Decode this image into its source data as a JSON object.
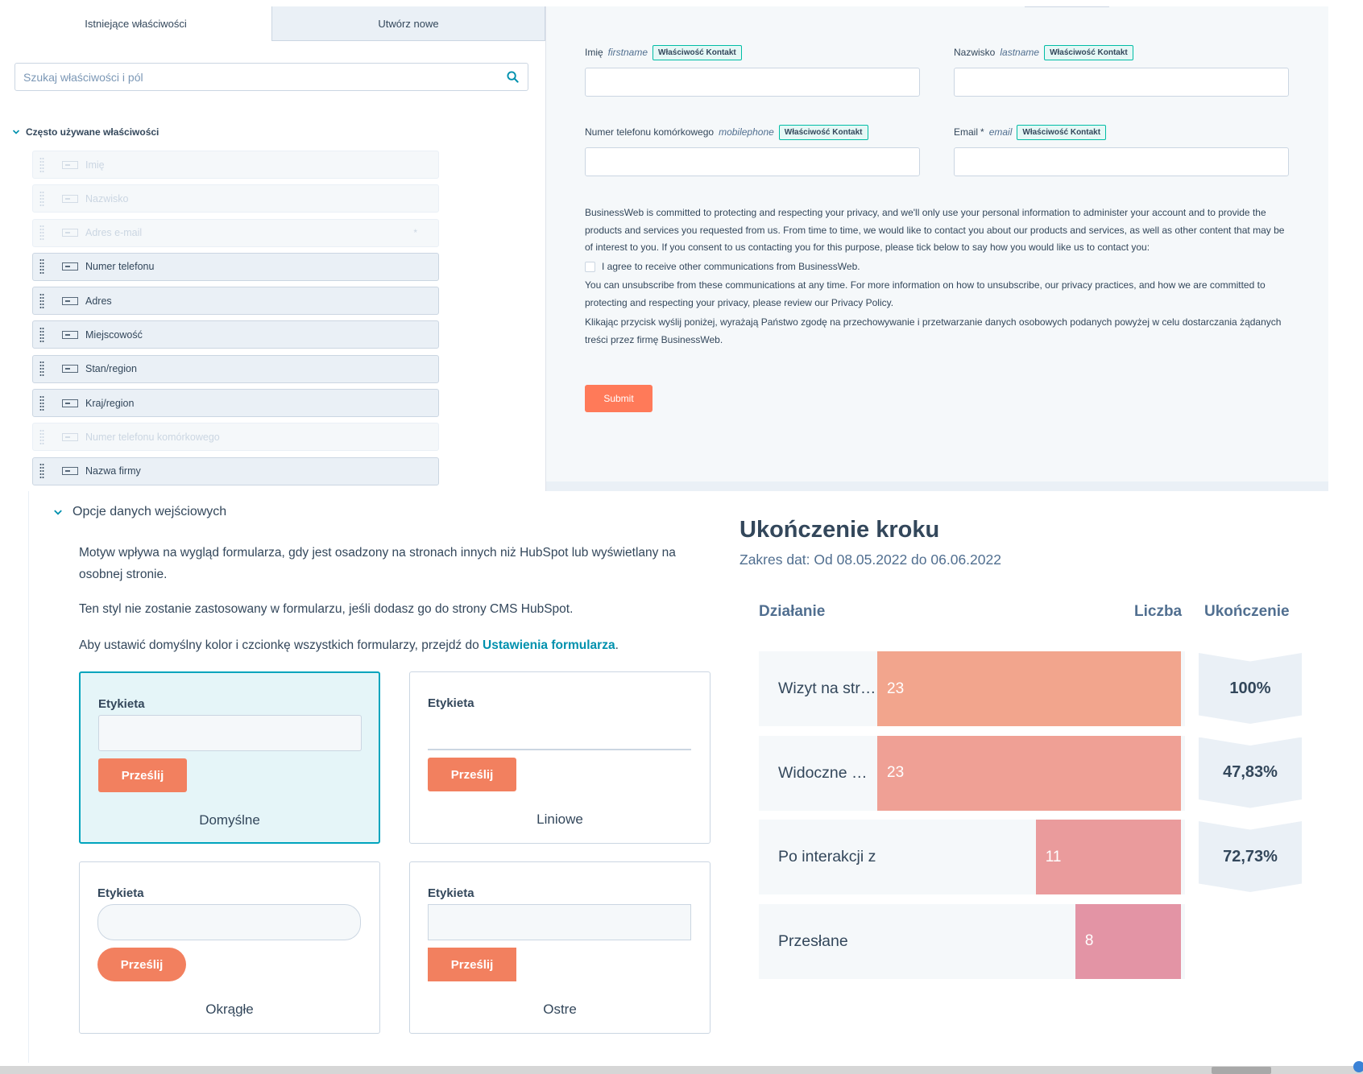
{
  "properties_panel": {
    "tab_existing": "Istniejące właściwości",
    "tab_create": "Utwórz nowe",
    "search_placeholder": "Szukaj właściwości i pól",
    "section_title": "Często używane właściwości",
    "items": [
      {
        "label": "Imię",
        "enabled": false,
        "required": false
      },
      {
        "label": "Nazwisko",
        "enabled": false,
        "required": false
      },
      {
        "label": "Adres e-mail",
        "enabled": false,
        "required": true
      },
      {
        "label": "Numer telefonu",
        "enabled": true,
        "required": false
      },
      {
        "label": "Adres",
        "enabled": true,
        "required": false
      },
      {
        "label": "Miejscowość",
        "enabled": true,
        "required": false
      },
      {
        "label": "Stan/region",
        "enabled": true,
        "required": false
      },
      {
        "label": "Kraj/region",
        "enabled": true,
        "required": false
      },
      {
        "label": "Numer telefonu komórkowego",
        "enabled": false,
        "required": false
      },
      {
        "label": "Nazwa firmy",
        "enabled": true,
        "required": false
      }
    ],
    "required_marker": "*"
  },
  "form_preview": {
    "badge": "Właściwość Kontakt",
    "fields": {
      "firstname": {
        "label": "Imię",
        "internal": "firstname"
      },
      "lastname": {
        "label": "Nazwisko",
        "internal": "lastname"
      },
      "mobilephone": {
        "label": "Numer telefonu komórkowego",
        "internal": "mobilephone"
      },
      "email": {
        "label": "Email",
        "star": "*",
        "internal": "email"
      }
    },
    "legal_1": "BusinessWeb is committed to protecting and respecting your privacy, and we'll only use your personal information to administer your account and to provide the products and services you requested from us. From time to time, we would like to contact you about our products and services, as well as other content that may be of interest to you. If you consent to us contacting you for this purpose, please tick below to say how you would like us to contact you:",
    "consent_label": "I agree to receive other communications from BusinessWeb.",
    "legal_2": "You can unsubscribe from these communications at any time. For more information on how to unsubscribe, our privacy practices, and how we are committed to protecting and respecting your privacy, please review our Privacy Policy.",
    "legal_3": "Klikając przycisk wyślij poniżej, wyrażają Państwo zgodę na przechowywanie i przetwarzanie danych osobowych podanych powyżej w celu dostarczania żądanych treści przez firmę BusinessWeb.",
    "submit_label": "Submit"
  },
  "style_options": {
    "heading": "Opcje danych wejściowych",
    "p1": "Motyw wpływa na wygląd formularza, gdy jest osadzony na stronach innych niż HubSpot lub wyświetlany na osobnej stronie.",
    "p2": "Ten styl nie zostanie zastosowany w formularzu, jeśli dodasz go do strony CMS HubSpot.",
    "p3_prefix": "Aby ustawić domyślny kolor i czcionkę wszystkich formularzy, przejdź do ",
    "p3_link": "Ustawienia formularza",
    "p3_suffix": ".",
    "card_label": "Etykieta",
    "card_button": "Prześlij",
    "themes": [
      {
        "name": "Domyślne",
        "selected": true
      },
      {
        "name": "Liniowe",
        "selected": false
      },
      {
        "name": "Okrągłe",
        "selected": false
      },
      {
        "name": "Ostre",
        "selected": false
      }
    ]
  },
  "step_completion": {
    "title": "Ukończenie kroku",
    "date_range": "Zakres dat: Od 08.05.2022 do 06.06.2022",
    "col_action": "Działanie",
    "col_count": "Liczba",
    "col_completion": "Ukończenie",
    "rows": [
      {
        "label": "Wizyt na str…",
        "count": "23",
        "completion": "100%",
        "color": "#f2a58d"
      },
      {
        "label": "Widoczne …",
        "count": "23",
        "completion": "47,83%",
        "color": "#efa095"
      },
      {
        "label": "Po interakcji z",
        "count": "11",
        "completion": "72,73%",
        "color": "#ea9b9c"
      },
      {
        "label": "Przesłane",
        "count": "8",
        "completion": "",
        "color": "#e394a5"
      }
    ]
  },
  "colors": {
    "accent": "#ff7a59",
    "teal": "#00bda5",
    "selected_border": "#00a4bd",
    "text": "#33475b"
  }
}
